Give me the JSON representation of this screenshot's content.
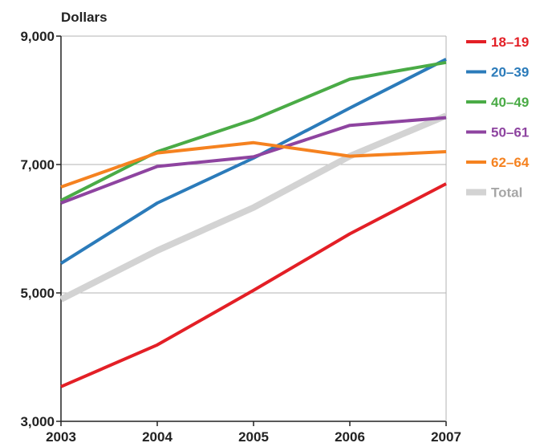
{
  "chart_data": {
    "type": "line",
    "ylabel": "Dollars",
    "x": [
      2003,
      2004,
      2005,
      2006,
      2007
    ],
    "x_tick_labels": [
      "2003",
      "2004",
      "2005",
      "2006",
      "2007"
    ],
    "ylim": [
      3000,
      9000
    ],
    "y_ticks": [
      3000,
      5000,
      7000,
      9000
    ],
    "y_tick_labels": [
      "3,000",
      "5,000",
      "7,000",
      "9,000"
    ],
    "grid": "horizontal",
    "legend_position": "right",
    "series": [
      {
        "name": "18–19",
        "color": "#e31f26",
        "values": [
          3540,
          4190,
          5040,
          5920,
          6700
        ]
      },
      {
        "name": "20–39",
        "color": "#2b7bba",
        "values": [
          5460,
          6400,
          7100,
          7880,
          8640
        ]
      },
      {
        "name": "40–49",
        "color": "#4aab46",
        "values": [
          6440,
          7200,
          7700,
          8330,
          8590
        ]
      },
      {
        "name": "50–61",
        "color": "#8e44a0",
        "values": [
          6400,
          6970,
          7120,
          7610,
          7730
        ]
      },
      {
        "name": "62–64",
        "color": "#f58220",
        "values": [
          6650,
          7180,
          7340,
          7130,
          7200
        ]
      },
      {
        "name": "Total",
        "color": "#d3d3d3",
        "values": [
          4900,
          5660,
          6330,
          7130,
          7760
        ]
      }
    ]
  }
}
